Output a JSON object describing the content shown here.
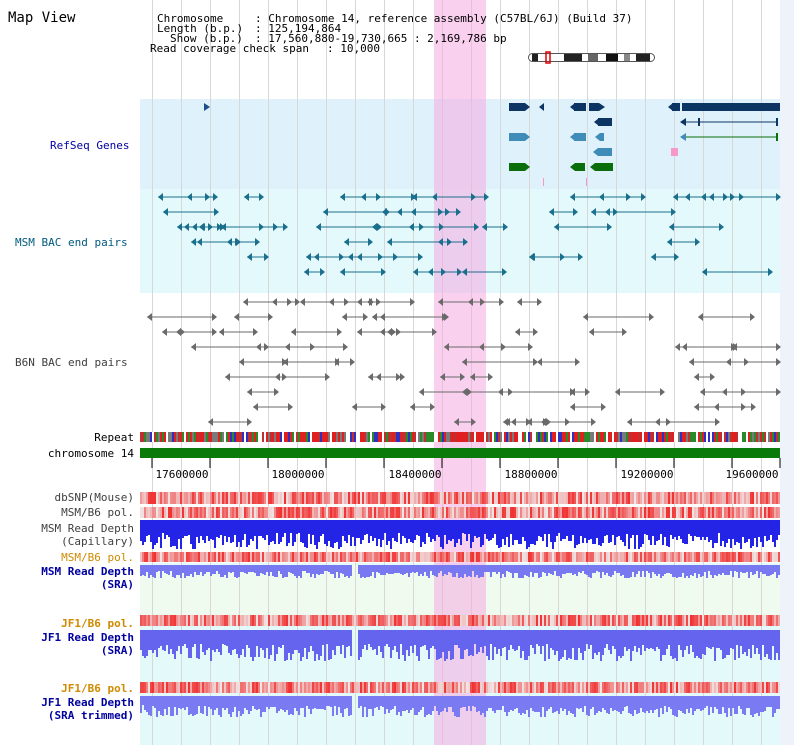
{
  "page": {
    "title": "Map View"
  },
  "header": {
    "chromosome_label": "Chromosome",
    "chromosome_value": ": Chromosome 14, reference assembly (C57BL/6J) (Build 37)",
    "length_label": "Length (b.p.)",
    "length_value": ": 125,194,864",
    "show_label": "Show (b.p.)",
    "show_value": ": 17,560,880-19,730,665 : 2,169,786 bp",
    "coverage_label": "Read coverage check span",
    "coverage_value": ": 10,000"
  },
  "tracks": {
    "refseq": "RefSeq Genes",
    "msm_bac": "MSM BAC end pairs",
    "b6n_bac": "B6N BAC end pairs",
    "repeat": "Repeat",
    "chromosome": "chromosome 14",
    "dbsnp": "dbSNP(Mouse)",
    "msm_b6_pol_1": "MSM/B6 pol.",
    "msm_read_depth_cap_1": "MSM Read Depth",
    "msm_read_depth_cap_2": "(Capillary)",
    "msm_b6_pol_2": "MSM/B6 pol.",
    "msm_read_depth_sra_1": "MSM Read Depth",
    "msm_read_depth_sra_2": "(SRA)",
    "jf1_b6_pol_1": "JF1/B6 pol.",
    "jf1_read_depth_sra_1": "JF1 Read Depth",
    "jf1_read_depth_sra_2": "(SRA)",
    "jf1_b6_pol_2": "JF1/B6 pol.",
    "jf1_read_depth_trim_1": "JF1 Read Depth",
    "jf1_read_depth_trim_2": "(SRA trimmed)"
  },
  "axis": {
    "ticks": [
      "17600000",
      "18000000",
      "18400000",
      "18800000",
      "19200000",
      "19600000"
    ]
  },
  "colors": {
    "refseq_bg": "#dff1fa",
    "msm_bg": "#e3f9fb",
    "highlight": "#f7b9e6",
    "gene_dark": "#0c3564",
    "gene_mid": "#3f8cb8",
    "gene_green": "#0a6e0a",
    "chromosome_bar": "#0a7a0a",
    "msm_label": "#005a80",
    "sra_label": "#0000a0",
    "pol_orange": "#d08a00",
    "depth_blue": "#3a3aff"
  }
}
